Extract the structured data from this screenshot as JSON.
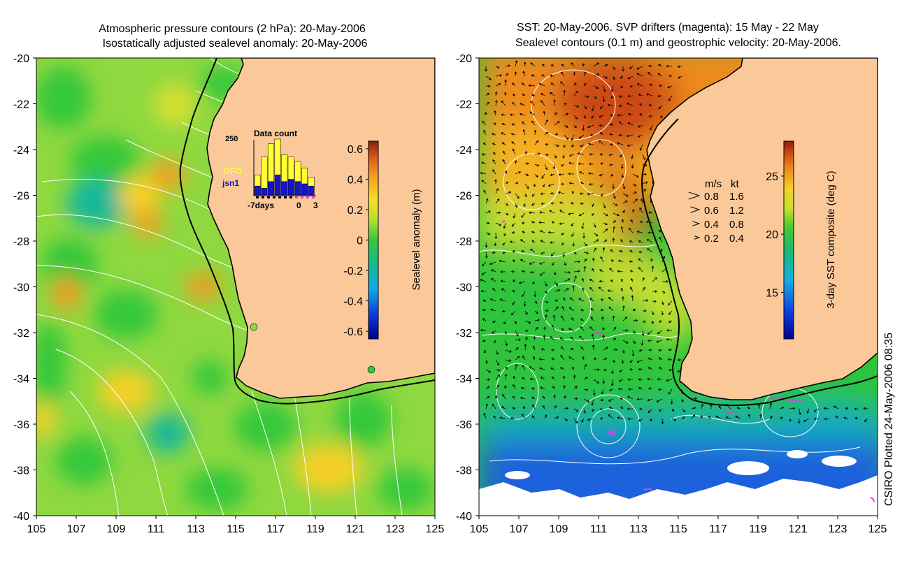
{
  "left_panel": {
    "title_line1": "Atmospheric pressure contours (2 hPa): 20-May-2006",
    "title_line2": "Isostatically adjusted sealevel anomaly: 20-May-2006",
    "y_ticks": [
      "-20",
      "-22",
      "-24",
      "-26",
      "-28",
      "-30",
      "-32",
      "-34",
      "-36",
      "-38",
      "-40"
    ],
    "x_ticks": [
      "105",
      "107",
      "109",
      "111",
      "113",
      "115",
      "117",
      "119",
      "121",
      "123",
      "125"
    ],
    "colorbar": {
      "label": "Sealevel anomaly (m)",
      "ticks": [
        "0.6",
        "0.4",
        "0.2",
        "0",
        "-0.2",
        "-0.4",
        "-0.6"
      ],
      "range": [
        -0.65,
        0.65
      ]
    },
    "inset": {
      "title": "Data count",
      "y_max_label": "250",
      "legend_gfo": "GFO",
      "legend_jsn1": "jsn1",
      "x_left_label": "-7days",
      "x_zero_label": "0",
      "x_right_label": "3",
      "gfo_color": "#ffff33",
      "jsn1_color": "#1515c8",
      "gfo_counts": [
        50,
        140,
        170,
        160,
        120,
        100,
        90,
        70,
        40
      ],
      "jsn1_counts": [
        40,
        30,
        60,
        90,
        60,
        70,
        60,
        50,
        40
      ]
    }
  },
  "right_panel": {
    "title_line1": "SST: 20-May-2006. SVP drifters (magenta): 15 May - 22 May",
    "title_line2": "Sealevel contours (0.1 m) and geostrophic velocity: 20-May-2006.",
    "y_ticks": [
      "-20",
      "-22",
      "-24",
      "-26",
      "-28",
      "-30",
      "-32",
      "-34",
      "-36",
      "-38",
      "-40"
    ],
    "x_ticks": [
      "105",
      "107",
      "109",
      "111",
      "113",
      "115",
      "117",
      "119",
      "121",
      "123",
      "125"
    ],
    "colorbar": {
      "label": "3-day SST composite (deg C)",
      "ticks": [
        "25",
        "20",
        "15"
      ],
      "range": [
        11,
        28
      ]
    },
    "velocity_legend": {
      "header_ms": "m/s",
      "header_kt": "kt",
      "rows": [
        {
          "ms": "0.8",
          "kt": "1.6"
        },
        {
          "ms": "0.6",
          "kt": "1.2"
        },
        {
          "ms": "0.4",
          "kt": "0.8"
        },
        {
          "ms": "0.2",
          "kt": "0.4"
        }
      ]
    }
  },
  "footer_credit": "CSIRO Plotted 24-May-2006 08:35",
  "colors": {
    "land": "#fbc89a",
    "coast": "#000000",
    "contour": "#ffffff",
    "drifter": "#e040e0"
  }
}
